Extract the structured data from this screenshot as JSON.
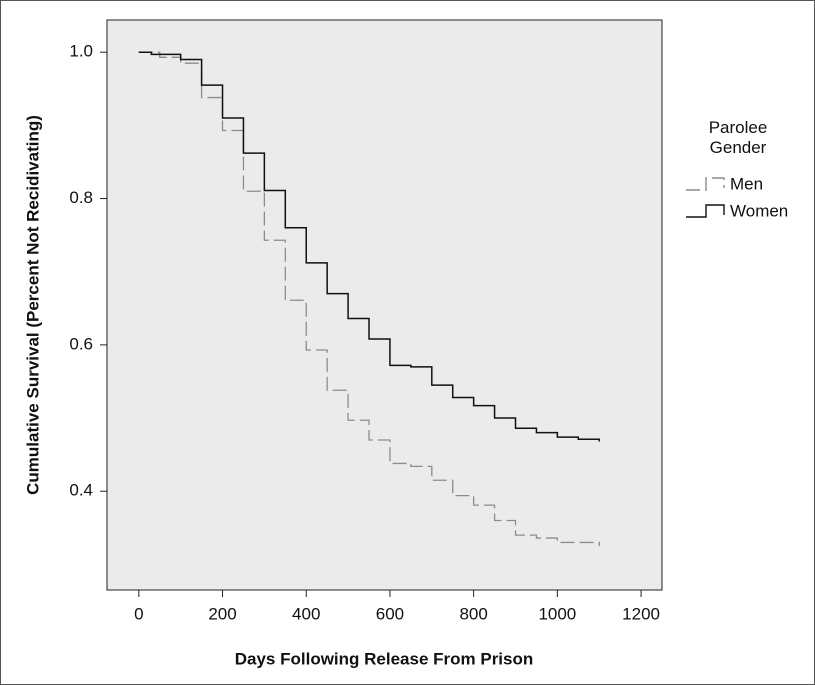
{
  "chart_data": {
    "type": "step",
    "x_label": "Days Following Release From Prison",
    "y_label": "Cumulative Survival (Percent Not Recidivating)",
    "legend_title": "Parolee Gender",
    "xlim": [
      -76,
      1250
    ],
    "ylim": [
      0.265,
      1.044
    ],
    "xticks": [
      0,
      200,
      400,
      600,
      800,
      1000,
      1200
    ],
    "yticks": [
      {
        "value": 0.4,
        "label": "0.4"
      },
      {
        "value": 0.6,
        "label": "0.6"
      },
      {
        "value": 0.8,
        "label": "0.8"
      },
      {
        "value": 1.0,
        "label": "1.0"
      }
    ],
    "series": [
      {
        "name": "Men",
        "color": "#8c8c8c",
        "dashed": true,
        "x": [
          0,
          50,
          100,
          150,
          200,
          250,
          300,
          350,
          400,
          450,
          500,
          550,
          600,
          650,
          700,
          750,
          800,
          850,
          900,
          950,
          1000,
          1100
        ],
        "values": [
          1.0,
          0.993,
          0.985,
          0.938,
          0.893,
          0.81,
          0.743,
          0.661,
          0.593,
          0.538,
          0.497,
          0.47,
          0.438,
          0.434,
          0.415,
          0.394,
          0.381,
          0.36,
          0.34,
          0.336,
          0.33,
          0.325
        ]
      },
      {
        "name": "Women",
        "color": "#111111",
        "dashed": false,
        "x": [
          0,
          30,
          100,
          150,
          200,
          250,
          300,
          350,
          400,
          450,
          500,
          550,
          600,
          650,
          700,
          750,
          800,
          850,
          900,
          950,
          1000,
          1050,
          1100
        ],
        "values": [
          1.0,
          0.997,
          0.99,
          0.955,
          0.91,
          0.862,
          0.811,
          0.76,
          0.712,
          0.67,
          0.636,
          0.608,
          0.572,
          0.57,
          0.545,
          0.528,
          0.517,
          0.5,
          0.486,
          0.48,
          0.474,
          0.471,
          0.468
        ]
      }
    ]
  }
}
